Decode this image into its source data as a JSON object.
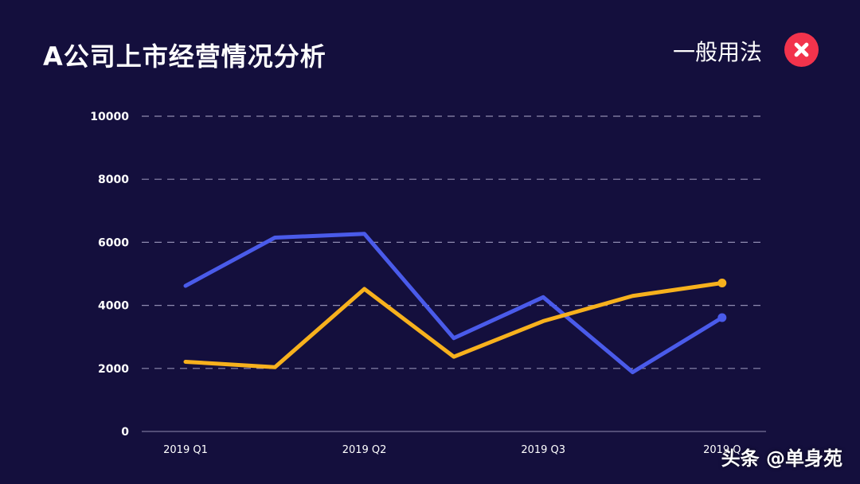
{
  "header": {
    "title": "A公司上市经营情况分析",
    "tag": "一般用法",
    "tag_icon": "close-circle-icon",
    "tag_icon_color": "#f2334c"
  },
  "watermark": "头条 @单身苑",
  "theme": {
    "background": "#140f3d",
    "grid": "#8f8bb0",
    "axis_text": "#ffffff"
  },
  "chart_data": {
    "type": "line",
    "title": "A公司上市经营情况分析",
    "xlabel": "",
    "ylabel": "",
    "x_ticks": [
      "2019 Q1",
      "2019 Q2",
      "2019 Q3",
      "2019 Q"
    ],
    "y_ticks": [
      0,
      2000,
      4000,
      6000,
      8000,
      10000
    ],
    "ylim": [
      0,
      10000
    ],
    "grid": true,
    "legend": "none",
    "series": [
      {
        "color": "#4a5bea",
        "values": [
          4620,
          6150,
          6270,
          2960,
          4260,
          1880,
          3610
        ]
      },
      {
        "color": "#f7b11d",
        "values": [
          2210,
          2040,
          4520,
          2370,
          3500,
          4300,
          4710
        ]
      }
    ]
  }
}
